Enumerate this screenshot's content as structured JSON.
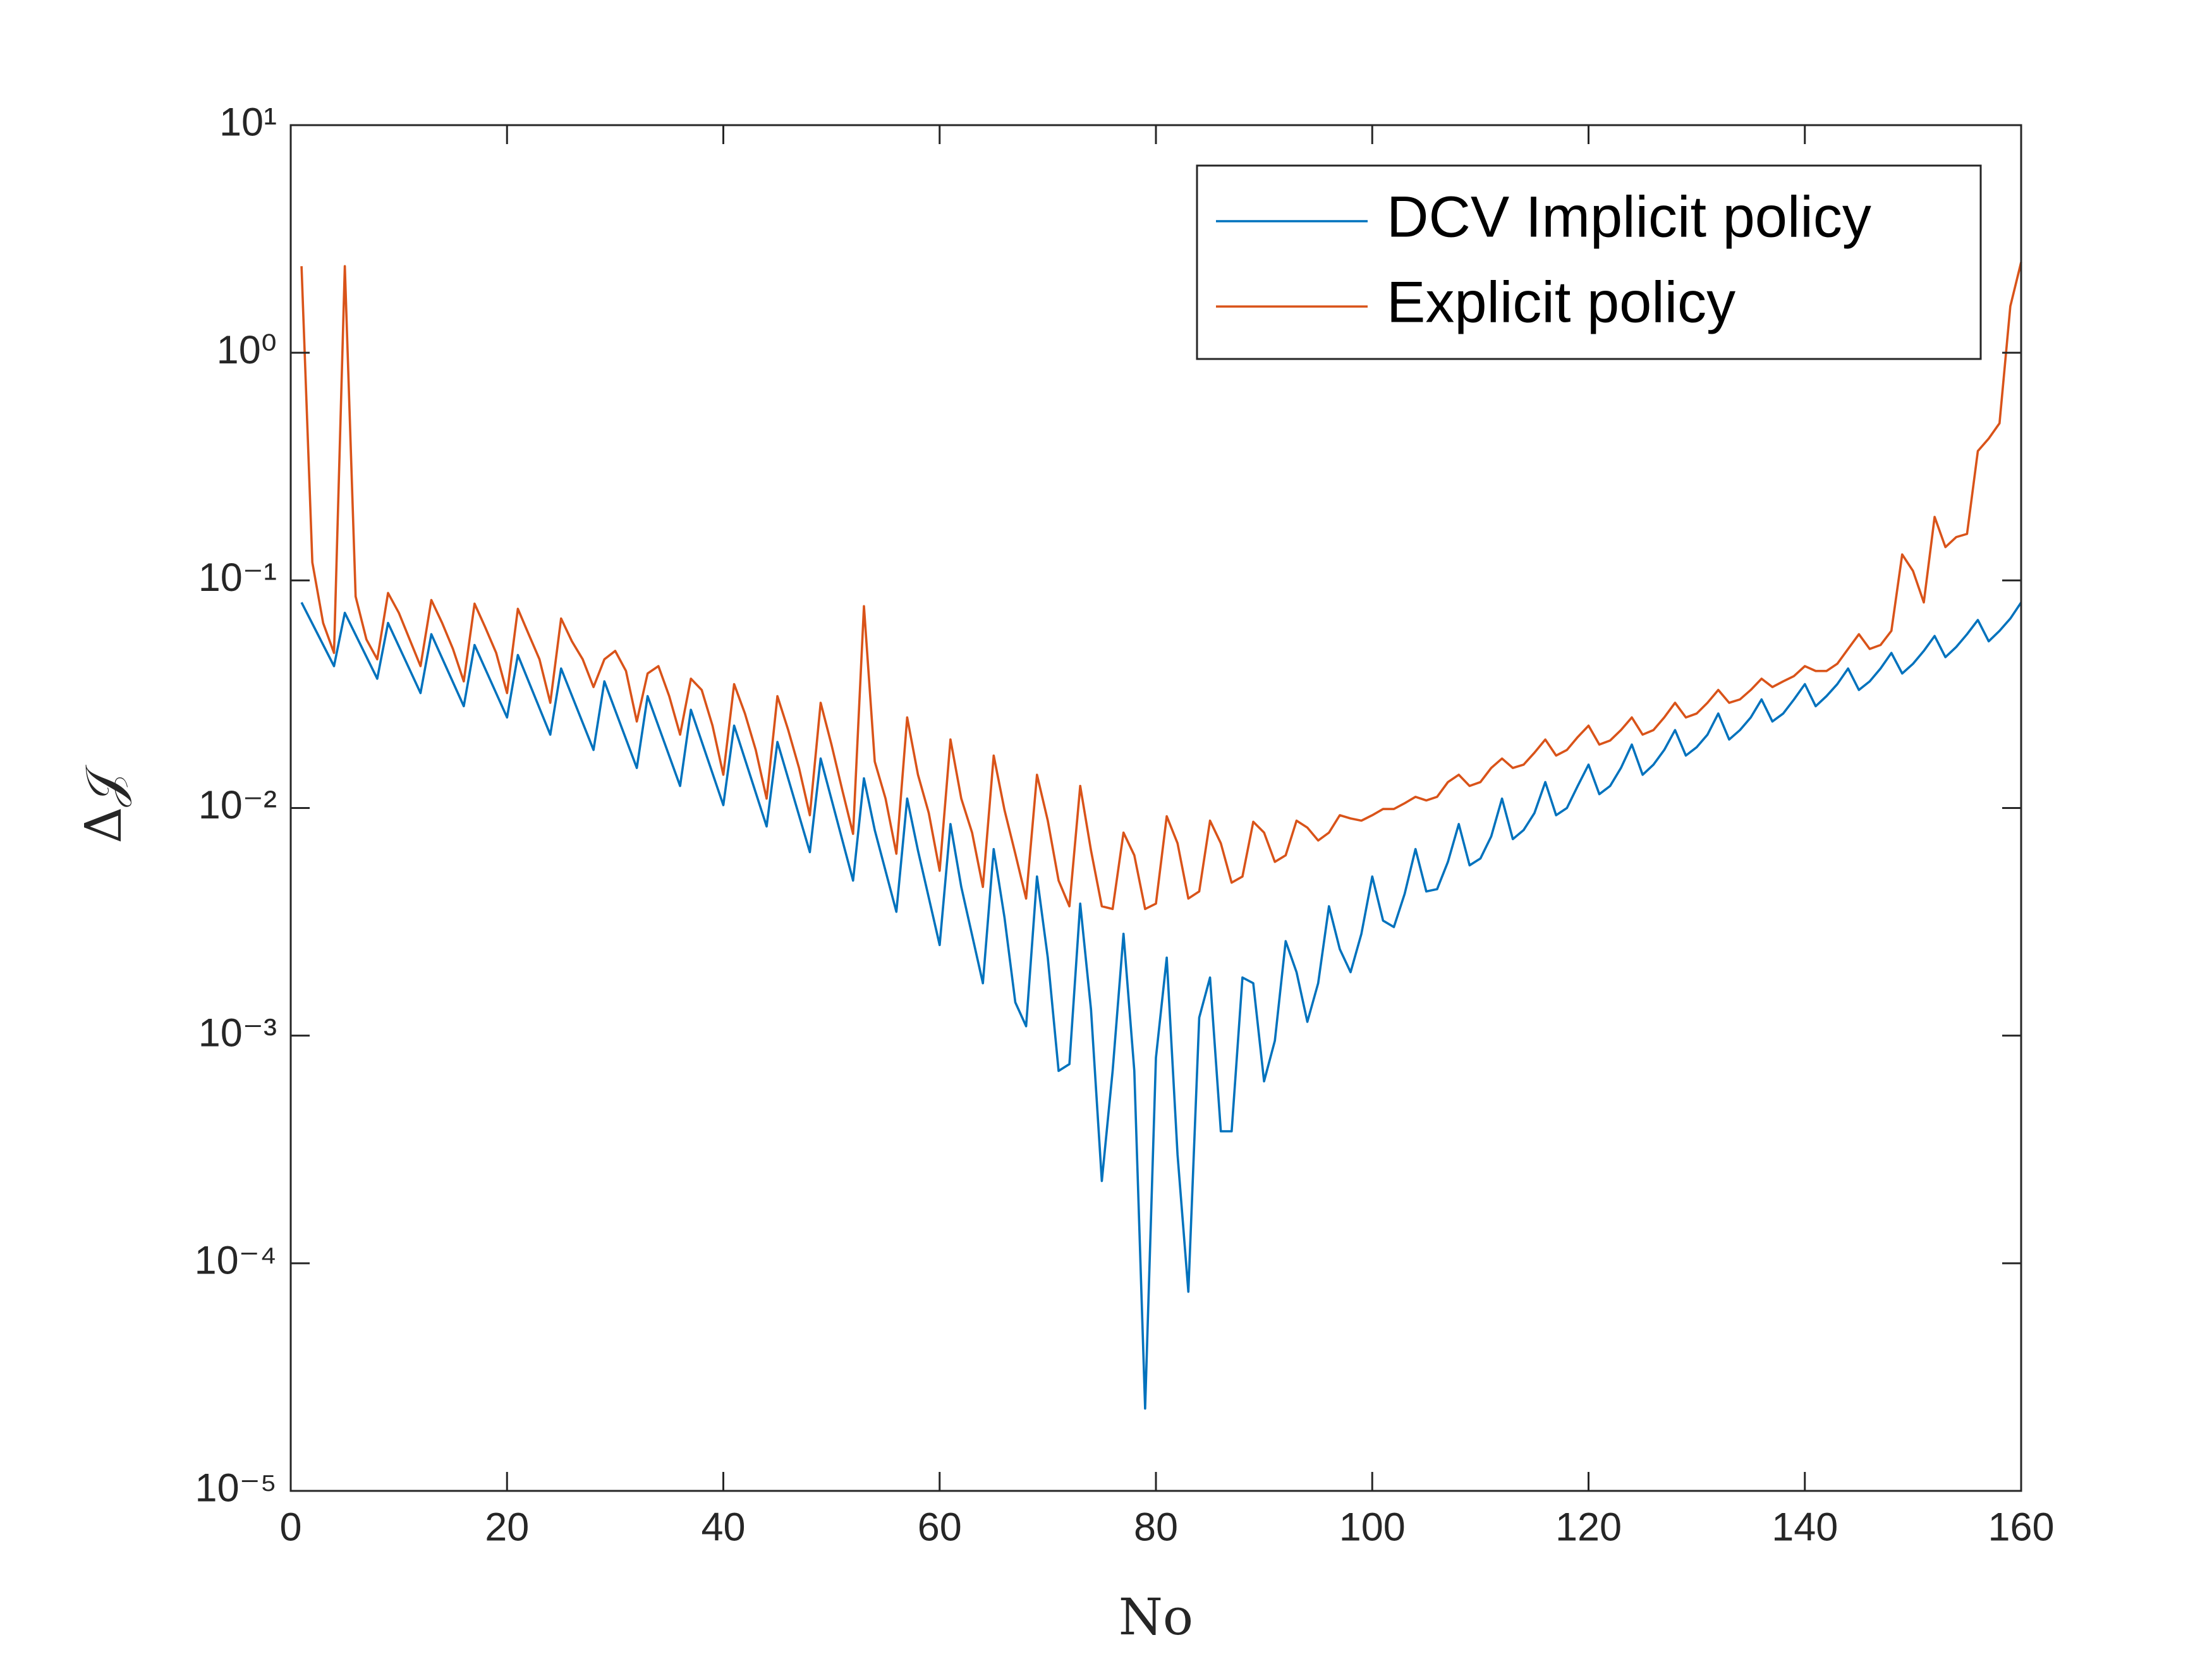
{
  "chart_data": {
    "type": "line",
    "xlabel": "No",
    "ylabel": "Δ𝒥",
    "xlim": [
      0,
      160
    ],
    "xticks": [
      0,
      20,
      40,
      60,
      80,
      100,
      120,
      140,
      160
    ],
    "ylim": [
      1e-05,
      10
    ],
    "log_y": true,
    "yticks": [
      {
        "value": 1e-05,
        "label": "10⁻⁵"
      },
      {
        "value": 0.0001,
        "label": "10⁻⁴"
      },
      {
        "value": 0.001,
        "label": "10⁻³"
      },
      {
        "value": 0.01,
        "label": "10⁻²"
      },
      {
        "value": 0.1,
        "label": "10⁻¹"
      },
      {
        "value": 1,
        "label": "10⁰"
      },
      {
        "value": 10,
        "label": "10¹"
      }
    ],
    "grid": false,
    "legend": "northeast",
    "series": [
      {
        "name": "DCV Implicit policy",
        "color": "#0072bd",
        "x": [
          1,
          4,
          5,
          8,
          9,
          12,
          13,
          16,
          17,
          20,
          21,
          24,
          25,
          28,
          29,
          32,
          33,
          36,
          37,
          40,
          41,
          44,
          45,
          48,
          49,
          52,
          53,
          54,
          56,
          57,
          58,
          60,
          61,
          62,
          64,
          65,
          66,
          67,
          68,
          69,
          70,
          71,
          72,
          73,
          74,
          75,
          76,
          77,
          78,
          79,
          80,
          81,
          82,
          83,
          84,
          85,
          86,
          87,
          88,
          89,
          90,
          91,
          92,
          93,
          94,
          95,
          96,
          97,
          98,
          99,
          100,
          101,
          102,
          103,
          104,
          105,
          106,
          107,
          108,
          109,
          110,
          111,
          112,
          113,
          114,
          115,
          116,
          117,
          118,
          119,
          120,
          121,
          122,
          123,
          124,
          125,
          126,
          127,
          128,
          129,
          130,
          131,
          132,
          133,
          134,
          135,
          136,
          137,
          138,
          139,
          140,
          141,
          142,
          143,
          144,
          145,
          146,
          147,
          148,
          149,
          150,
          151,
          152,
          153,
          154,
          155,
          156,
          157,
          158,
          159,
          160
        ],
        "values": [
          0.08,
          0.042,
          0.072,
          0.037,
          0.065,
          0.032,
          0.058,
          0.028,
          0.052,
          0.025,
          0.047,
          0.021,
          0.041,
          0.018,
          0.036,
          0.015,
          0.031,
          0.0125,
          0.027,
          0.0103,
          0.023,
          0.0083,
          0.0195,
          0.0064,
          0.0165,
          0.0048,
          0.0135,
          0.008,
          0.0035,
          0.011,
          0.0065,
          0.0025,
          0.0085,
          0.0045,
          0.0017,
          0.0066,
          0.0033,
          0.0014,
          0.0011,
          0.005,
          0.0022,
          0.0007,
          0.00075,
          0.0038,
          0.0013,
          0.00023,
          0.0007,
          0.0028,
          0.0007,
          2.3e-05,
          0.0008,
          0.0022,
          0.0003,
          7.5e-05,
          0.0012,
          0.0018,
          0.00038,
          0.00038,
          0.0018,
          0.0017,
          0.00063,
          0.00095,
          0.0026,
          0.0019,
          0.00115,
          0.0017,
          0.0037,
          0.0024,
          0.0019,
          0.0028,
          0.005,
          0.0032,
          0.003,
          0.0042,
          0.0066,
          0.0043,
          0.0044,
          0.0058,
          0.0085,
          0.0056,
          0.006,
          0.0075,
          0.011,
          0.0073,
          0.008,
          0.0095,
          0.013,
          0.0093,
          0.01,
          0.0125,
          0.0155,
          0.0115,
          0.0125,
          0.015,
          0.019,
          0.014,
          0.0155,
          0.018,
          0.022,
          0.017,
          0.0185,
          0.021,
          0.026,
          0.02,
          0.022,
          0.025,
          0.03,
          0.024,
          0.026,
          0.03,
          0.035,
          0.028,
          0.031,
          0.035,
          0.041,
          0.033,
          0.036,
          0.041,
          0.048,
          0.039,
          0.043,
          0.049,
          0.057,
          0.046,
          0.051,
          0.058,
          0.067,
          0.054,
          0.06,
          0.068,
          0.08
        ]
      },
      {
        "name": "Explicit policy",
        "color": "#d95319",
        "x": [
          1,
          2,
          3,
          4,
          5,
          6,
          7,
          8,
          9,
          10,
          11,
          12,
          13,
          14,
          15,
          16,
          17,
          18,
          19,
          20,
          21,
          22,
          23,
          24,
          25,
          26,
          27,
          28,
          29,
          30,
          31,
          32,
          33,
          34,
          35,
          36,
          37,
          38,
          39,
          40,
          41,
          42,
          43,
          44,
          45,
          46,
          47,
          48,
          49,
          50,
          51,
          52,
          53,
          54,
          55,
          56,
          57,
          58,
          59,
          60,
          61,
          62,
          63,
          64,
          65,
          66,
          67,
          68,
          69,
          70,
          71,
          72,
          73,
          74,
          75,
          76,
          77,
          78,
          79,
          80,
          81,
          82,
          83,
          84,
          85,
          86,
          87,
          88,
          89,
          90,
          91,
          92,
          93,
          94,
          95,
          96,
          97,
          98,
          99,
          100,
          101,
          102,
          103,
          104,
          105,
          106,
          107,
          108,
          109,
          110,
          111,
          112,
          113,
          114,
          115,
          116,
          117,
          118,
          119,
          120,
          121,
          122,
          123,
          124,
          125,
          126,
          127,
          128,
          129,
          130,
          131,
          132,
          133,
          134,
          135,
          136,
          137,
          138,
          139,
          140,
          141,
          142,
          143,
          144,
          145,
          146,
          147,
          148,
          149,
          150,
          151,
          152,
          153,
          154,
          155,
          156,
          157,
          158,
          159,
          160
        ],
        "values": [
          2.4,
          0.12,
          0.065,
          0.048,
          2.4,
          0.085,
          0.055,
          0.045,
          0.088,
          0.072,
          0.055,
          0.042,
          0.082,
          0.065,
          0.05,
          0.036,
          0.079,
          0.062,
          0.048,
          0.032,
          0.075,
          0.058,
          0.045,
          0.029,
          0.068,
          0.054,
          0.045,
          0.034,
          0.045,
          0.049,
          0.04,
          0.024,
          0.039,
          0.042,
          0.031,
          0.021,
          0.037,
          0.033,
          0.023,
          0.014,
          0.035,
          0.026,
          0.018,
          0.011,
          0.031,
          0.022,
          0.015,
          0.0093,
          0.029,
          0.019,
          0.012,
          0.0077,
          0.077,
          0.016,
          0.011,
          0.0063,
          0.025,
          0.014,
          0.0095,
          0.0053,
          0.02,
          0.011,
          0.0078,
          0.0045,
          0.017,
          0.0098,
          0.0063,
          0.004,
          0.014,
          0.0088,
          0.0048,
          0.0037,
          0.0125,
          0.0065,
          0.0037,
          0.0036,
          0.0078,
          0.0062,
          0.0036,
          0.0038,
          0.0092,
          0.007,
          0.004,
          0.0043,
          0.0088,
          0.007,
          0.0047,
          0.005,
          0.0087,
          0.0078,
          0.0058,
          0.0062,
          0.0088,
          0.0082,
          0.0072,
          0.0078,
          0.0093,
          0.009,
          0.0088,
          0.0093,
          0.0099,
          0.0099,
          0.0105,
          0.0112,
          0.0108,
          0.0112,
          0.013,
          0.014,
          0.0125,
          0.013,
          0.015,
          0.0165,
          0.015,
          0.0155,
          0.0175,
          0.02,
          0.017,
          0.018,
          0.0205,
          0.023,
          0.019,
          0.0198,
          0.022,
          0.025,
          0.021,
          0.022,
          0.025,
          0.029,
          0.025,
          0.026,
          0.029,
          0.033,
          0.029,
          0.03,
          0.033,
          0.037,
          0.034,
          0.036,
          0.038,
          0.042,
          0.04,
          0.04,
          0.043,
          0.05,
          0.058,
          0.05,
          0.052,
          0.06,
          0.13,
          0.11,
          0.08,
          0.19,
          0.14,
          0.155,
          0.16,
          0.37,
          0.42,
          0.49,
          1.6,
          2.5
        ]
      }
    ]
  }
}
